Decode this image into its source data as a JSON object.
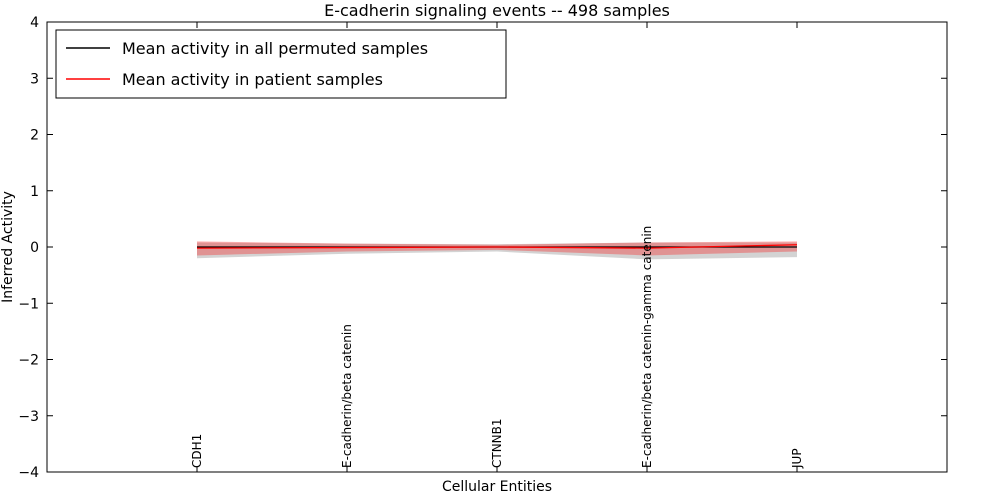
{
  "chart_data": {
    "type": "line",
    "title": "E-cadherin signaling events -- 498 samples",
    "xlabel": "Cellular Entities",
    "ylabel": "Inferred Activity",
    "ylim": [
      -4,
      4
    ],
    "yticks": [
      -4,
      -3,
      -2,
      -1,
      0,
      1,
      2,
      3,
      4
    ],
    "grid": false,
    "legend_position": "upper left",
    "categories": [
      "CDH1",
      "E-cadherin/beta catenin",
      "CTNNB1",
      "E-cadherin/beta catenin-gamma catenin",
      "JUP"
    ],
    "series": [
      {
        "name": "Mean activity in all permuted samples",
        "color": "#000000",
        "band_color": "rgba(130,130,130,0.35)",
        "values": [
          0.0,
          0.0,
          0.0,
          0.0,
          0.0
        ],
        "band_upper": [
          0.08,
          0.06,
          0.05,
          0.08,
          0.08
        ],
        "band_lower": [
          -0.2,
          -0.12,
          -0.08,
          -0.22,
          -0.18
        ]
      },
      {
        "name": "Mean activity in patient samples",
        "color": "#ff0000",
        "band_color": "rgba(255,0,0,0.30)",
        "values": [
          -0.02,
          -0.01,
          0.0,
          -0.02,
          0.04
        ],
        "band_upper": [
          0.1,
          0.06,
          0.04,
          0.08,
          0.1
        ],
        "band_lower": [
          -0.15,
          -0.08,
          -0.05,
          -0.15,
          -0.08
        ]
      }
    ]
  }
}
